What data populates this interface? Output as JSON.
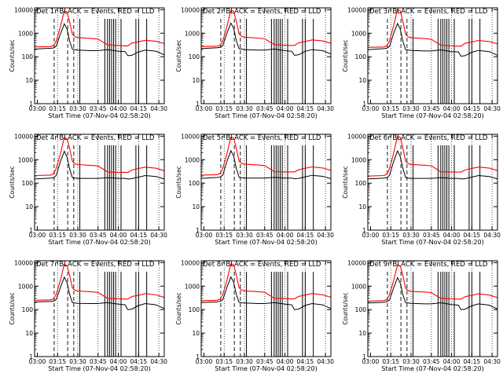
{
  "figure": {
    "x_axis_label": "Start Time (07-Nov-04 02:58:20)",
    "y_axis_label": "Counts/sec",
    "colors": {
      "events": "#000000",
      "lld": "#ff0000",
      "markers": "#000000"
    }
  },
  "chart_data": [
    {
      "type": "line",
      "title": "Det 1r BLACK = Events, RED = LLD",
      "x_ticks": [
        "03:00",
        "03:15",
        "03:30",
        "03:45",
        "04:00",
        "04:15",
        "04:30"
      ],
      "y_ticks": [
        "1",
        "10",
        "100",
        "1000",
        "10000"
      ],
      "ylim": [
        1,
        12000
      ],
      "y_scale": "log",
      "x": [
        "02:58",
        "03:10",
        "03:12",
        "03:14",
        "03:17",
        "03:20",
        "03:22",
        "03:24",
        "03:26",
        "03:28",
        "03:30",
        "03:40",
        "03:45",
        "03:52",
        "04:00",
        "04:05",
        "04:07",
        "04:10",
        "04:15",
        "04:20",
        "04:28",
        "04:34"
      ],
      "series": [
        {
          "name": "Events",
          "color": "#000000",
          "values": [
            210,
            230,
            235,
            280,
            900,
            2500,
            1500,
            450,
            210,
            200,
            190,
            180,
            180,
            200,
            170,
            165,
            110,
            115,
            160,
            190,
            170,
            120
          ]
        },
        {
          "name": "LLD",
          "color": "#ff0000",
          "values": [
            260,
            270,
            300,
            450,
            1800,
            9000,
            8000,
            3000,
            900,
            700,
            650,
            600,
            560,
            320,
            300,
            290,
            290,
            380,
            430,
            500,
            450,
            360
          ]
        }
      ]
    },
    {
      "type": "line",
      "title": "Det 2r BLACK = Events, RED = LLD",
      "x_ticks": [
        "03:00",
        "03:15",
        "03:30",
        "03:45",
        "04:00",
        "04:15",
        "04:30"
      ],
      "y_ticks": [
        "1",
        "10",
        "100",
        "1000",
        "10000"
      ],
      "ylim": [
        1,
        12000
      ],
      "y_scale": "log",
      "x": [
        "02:58",
        "03:10",
        "03:12",
        "03:14",
        "03:17",
        "03:20",
        "03:22",
        "03:24",
        "03:26",
        "03:28",
        "03:30",
        "03:40",
        "03:45",
        "03:52",
        "04:00",
        "04:05",
        "04:07",
        "04:10",
        "04:15",
        "04:20",
        "04:28",
        "04:34"
      ],
      "series": [
        {
          "name": "Events",
          "color": "#000000",
          "values": [
            220,
            240,
            250,
            300,
            1000,
            2700,
            1600,
            480,
            220,
            210,
            200,
            190,
            190,
            210,
            180,
            170,
            115,
            120,
            170,
            200,
            180,
            130
          ]
        },
        {
          "name": "LLD",
          "color": "#ff0000",
          "values": [
            270,
            280,
            310,
            470,
            1900,
            9500,
            8500,
            3200,
            950,
            720,
            680,
            620,
            580,
            330,
            310,
            300,
            300,
            390,
            440,
            520,
            470,
            370
          ]
        }
      ]
    },
    {
      "type": "line",
      "title": "Det 3r BLACK = Events, RED = LLD",
      "x_ticks": [
        "03:00",
        "03:15",
        "03:30",
        "03:45",
        "04:00",
        "04:15",
        "04:30"
      ],
      "y_ticks": [
        "1",
        "10",
        "100",
        "1000",
        "10000"
      ],
      "ylim": [
        1,
        12000
      ],
      "y_scale": "log",
      "x": [
        "02:58",
        "03:10",
        "03:12",
        "03:14",
        "03:17",
        "03:20",
        "03:22",
        "03:24",
        "03:26",
        "03:28",
        "03:30",
        "03:40",
        "03:45",
        "03:52",
        "04:00",
        "04:05",
        "04:07",
        "04:10",
        "04:15",
        "04:20",
        "04:28",
        "04:34"
      ],
      "series": [
        {
          "name": "Events",
          "color": "#000000",
          "values": [
            200,
            220,
            230,
            270,
            950,
            2600,
            1500,
            440,
            200,
            190,
            185,
            175,
            175,
            195,
            165,
            160,
            105,
            110,
            155,
            185,
            165,
            115
          ]
        },
        {
          "name": "LLD",
          "color": "#ff0000",
          "values": [
            250,
            260,
            290,
            460,
            2000,
            10500,
            9000,
            3100,
            880,
            690,
            640,
            590,
            550,
            310,
            290,
            280,
            280,
            370,
            420,
            490,
            440,
            350
          ]
        }
      ]
    },
    {
      "type": "line",
      "title": "Det 4r BLACK = Events, RED = LLD",
      "x_ticks": [
        "03:00",
        "03:15",
        "03:30",
        "03:45",
        "04:00",
        "04:15",
        "04:30"
      ],
      "y_ticks": [
        "1",
        "10",
        "100",
        "1000",
        "10000"
      ],
      "ylim": [
        1,
        12000
      ],
      "y_scale": "log",
      "x": [
        "02:58",
        "03:10",
        "03:12",
        "03:14",
        "03:17",
        "03:20",
        "03:22",
        "03:24",
        "03:26",
        "03:28",
        "03:30",
        "03:40",
        "03:45",
        "03:52",
        "04:00",
        "04:05",
        "04:07",
        "04:10",
        "04:15",
        "04:20",
        "04:28",
        "04:34"
      ],
      "series": [
        {
          "name": "Events",
          "color": "#000000",
          "values": [
            150,
            165,
            170,
            210,
            800,
            2300,
            1300,
            400,
            170,
            165,
            160,
            160,
            160,
            170,
            160,
            160,
            150,
            155,
            180,
            210,
            190,
            150
          ]
        },
        {
          "name": "LLD",
          "color": "#ff0000",
          "values": [
            210,
            220,
            250,
            420,
            1700,
            8800,
            7800,
            2900,
            850,
            660,
            620,
            570,
            540,
            300,
            290,
            290,
            290,
            360,
            420,
            480,
            430,
            340
          ]
        }
      ]
    },
    {
      "type": "line",
      "title": "Det 5r BLACK = Events, RED = LLD",
      "x_ticks": [
        "03:00",
        "03:15",
        "03:30",
        "03:45",
        "04:00",
        "04:15",
        "04:30"
      ],
      "y_ticks": [
        "1",
        "10",
        "100",
        "1000",
        "10000"
      ],
      "ylim": [
        1,
        12000
      ],
      "y_scale": "log",
      "x": [
        "02:58",
        "03:10",
        "03:12",
        "03:14",
        "03:17",
        "03:20",
        "03:22",
        "03:24",
        "03:26",
        "03:28",
        "03:30",
        "03:40",
        "03:45",
        "03:52",
        "04:00",
        "04:05",
        "04:07",
        "04:10",
        "04:15",
        "04:20",
        "04:28",
        "04:34"
      ],
      "series": [
        {
          "name": "Events",
          "color": "#000000",
          "values": [
            160,
            175,
            180,
            220,
            850,
            2400,
            1400,
            420,
            180,
            170,
            165,
            165,
            165,
            175,
            165,
            165,
            155,
            160,
            185,
            215,
            195,
            155
          ]
        },
        {
          "name": "LLD",
          "color": "#ff0000",
          "values": [
            220,
            230,
            260,
            430,
            1750,
            9200,
            8200,
            3000,
            870,
            680,
            640,
            590,
            560,
            310,
            300,
            300,
            300,
            370,
            430,
            490,
            440,
            350
          ]
        }
      ]
    },
    {
      "type": "line",
      "title": "Det 6r BLACK = Events, RED = LLD",
      "x_ticks": [
        "03:00",
        "03:15",
        "03:30",
        "03:45",
        "04:00",
        "04:15",
        "04:30"
      ],
      "y_ticks": [
        "1",
        "10",
        "100",
        "1000",
        "10000"
      ],
      "ylim": [
        1,
        12000
      ],
      "y_scale": "log",
      "x": [
        "02:58",
        "03:10",
        "03:12",
        "03:14",
        "03:17",
        "03:20",
        "03:22",
        "03:24",
        "03:26",
        "03:28",
        "03:30",
        "03:40",
        "03:45",
        "03:52",
        "04:00",
        "04:05",
        "04:07",
        "04:10",
        "04:15",
        "04:20",
        "04:28",
        "04:34"
      ],
      "series": [
        {
          "name": "Events",
          "color": "#000000",
          "values": [
            150,
            165,
            170,
            210,
            820,
            2350,
            1350,
            410,
            175,
            165,
            160,
            160,
            160,
            170,
            160,
            160,
            150,
            155,
            180,
            210,
            190,
            150
          ]
        },
        {
          "name": "LLD",
          "color": "#ff0000",
          "values": [
            200,
            210,
            240,
            410,
            1800,
            10000,
            8800,
            3000,
            860,
            670,
            630,
            580,
            550,
            305,
            295,
            295,
            295,
            365,
            425,
            485,
            435,
            345
          ]
        }
      ]
    },
    {
      "type": "line",
      "title": "Det 7r BLACK = Events, RED = LLD",
      "x_ticks": [
        "03:00",
        "03:15",
        "03:30",
        "03:45",
        "04:00",
        "04:15",
        "04:30"
      ],
      "y_ticks": [
        "1",
        "10",
        "100",
        "1000",
        "10000"
      ],
      "ylim": [
        1,
        12000
      ],
      "y_scale": "log",
      "x": [
        "02:58",
        "03:10",
        "03:12",
        "03:14",
        "03:17",
        "03:20",
        "03:22",
        "03:24",
        "03:26",
        "03:28",
        "03:30",
        "03:40",
        "03:45",
        "03:52",
        "04:00",
        "04:05",
        "04:07",
        "04:10",
        "04:15",
        "04:20",
        "04:28",
        "04:34"
      ],
      "series": [
        {
          "name": "Events",
          "color": "#000000",
          "values": [
            210,
            225,
            230,
            270,
            850,
            2400,
            1400,
            430,
            200,
            190,
            185,
            180,
            180,
            200,
            170,
            160,
            100,
            105,
            150,
            180,
            160,
            110
          ]
        },
        {
          "name": "LLD",
          "color": "#ff0000",
          "values": [
            250,
            260,
            290,
            440,
            1700,
            8500,
            7500,
            2800,
            850,
            660,
            620,
            570,
            540,
            300,
            290,
            280,
            280,
            360,
            410,
            480,
            420,
            330
          ]
        }
      ]
    },
    {
      "type": "line",
      "title": "Det 8r BLACK = Events, RED = LLD",
      "x_ticks": [
        "03:00",
        "03:15",
        "03:30",
        "03:45",
        "04:00",
        "04:15",
        "04:30"
      ],
      "y_ticks": [
        "1",
        "10",
        "100",
        "1000",
        "10000"
      ],
      "ylim": [
        1,
        12000
      ],
      "y_scale": "log",
      "x": [
        "02:58",
        "03:10",
        "03:12",
        "03:14",
        "03:17",
        "03:20",
        "03:22",
        "03:24",
        "03:26",
        "03:28",
        "03:30",
        "03:40",
        "03:45",
        "03:52",
        "04:00",
        "04:05",
        "04:07",
        "04:10",
        "04:15",
        "04:20",
        "04:28",
        "04:34"
      ],
      "series": [
        {
          "name": "Events",
          "color": "#000000",
          "values": [
            200,
            215,
            225,
            265,
            880,
            2450,
            1450,
            440,
            205,
            195,
            190,
            180,
            180,
            200,
            170,
            160,
            100,
            105,
            150,
            180,
            160,
            110
          ]
        },
        {
          "name": "LLD",
          "color": "#ff0000",
          "values": [
            240,
            250,
            280,
            430,
            1750,
            9000,
            8000,
            2900,
            860,
            670,
            630,
            580,
            550,
            305,
            295,
            285,
            285,
            365,
            415,
            485,
            425,
            335
          ]
        }
      ]
    },
    {
      "type": "line",
      "title": "Det 9r BLACK = Events, RED = LLD",
      "x_ticks": [
        "03:00",
        "03:15",
        "03:30",
        "03:45",
        "04:00",
        "04:15",
        "04:30"
      ],
      "y_ticks": [
        "1",
        "10",
        "100",
        "1000",
        "10000"
      ],
      "ylim": [
        1,
        12000
      ],
      "y_scale": "log",
      "x": [
        "02:58",
        "03:10",
        "03:12",
        "03:14",
        "03:17",
        "03:20",
        "03:22",
        "03:24",
        "03:26",
        "03:28",
        "03:30",
        "03:40",
        "03:45",
        "03:52",
        "04:00",
        "04:05",
        "04:07",
        "04:10",
        "04:15",
        "04:20",
        "04:28",
        "04:34"
      ],
      "series": [
        {
          "name": "Events",
          "color": "#000000",
          "values": [
            190,
            205,
            215,
            255,
            820,
            2300,
            1350,
            420,
            200,
            190,
            185,
            175,
            175,
            195,
            165,
            155,
            100,
            105,
            145,
            175,
            155,
            105
          ]
        },
        {
          "name": "LLD",
          "color": "#ff0000",
          "values": [
            230,
            240,
            270,
            420,
            1650,
            8000,
            7200,
            2700,
            820,
            640,
            600,
            560,
            530,
            300,
            290,
            280,
            280,
            355,
            405,
            470,
            415,
            325
          ]
        }
      ]
    }
  ]
}
